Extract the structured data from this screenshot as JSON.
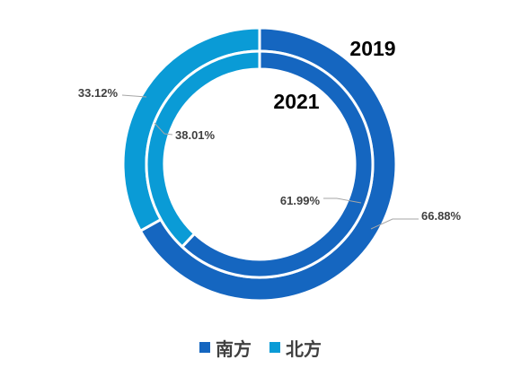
{
  "chart_data": {
    "type": "donut",
    "categories": [
      "南方",
      "北方"
    ],
    "series": [
      {
        "name": "2019",
        "values": [
          66.88,
          33.12
        ]
      },
      {
        "name": "2021",
        "values": [
          61.99,
          38.01
        ]
      }
    ],
    "data_labels": {
      "2019": [
        "66.88%",
        "33.12%"
      ],
      "2021": [
        "61.99%",
        "38.01%"
      ]
    },
    "legend_position": "bottom",
    "colors": [
      "#1566C0",
      "#0A9BD6"
    ]
  }
}
